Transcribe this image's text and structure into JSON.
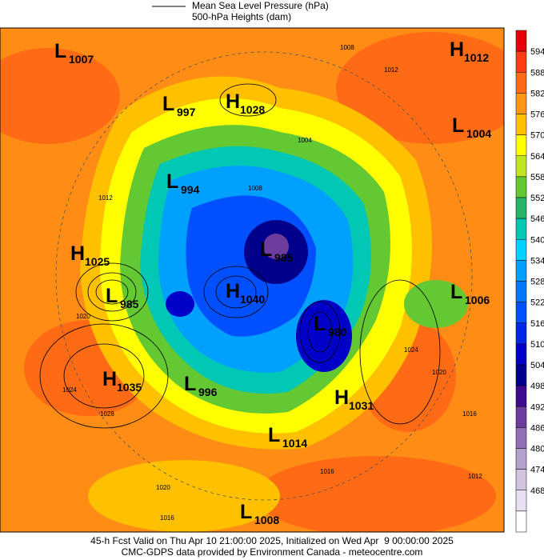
{
  "legend": {
    "pressure_label": "Mean Sea Level Pressure (hPa)",
    "heights_label": "500-hPa Heights (dam)"
  },
  "colorbar": {
    "top_color": "#e8000b",
    "levels": [
      {
        "label": 594,
        "color": "#ff3c14"
      },
      {
        "label": 588,
        "color": "#ff6a14"
      },
      {
        "label": 582,
        "color": "#ff9614"
      },
      {
        "label": 576,
        "color": "#ffc000"
      },
      {
        "label": 570,
        "color": "#ffff00"
      },
      {
        "label": 564,
        "color": "#c0e620"
      },
      {
        "label": 558,
        "color": "#64c832"
      },
      {
        "label": 552,
        "color": "#28b464"
      },
      {
        "label": 546,
        "color": "#00c8b4"
      },
      {
        "label": 540,
        "color": "#00d2ff"
      },
      {
        "label": 534,
        "color": "#00a0ff"
      },
      {
        "label": 528,
        "color": "#0078ff"
      },
      {
        "label": 522,
        "color": "#0050ff"
      },
      {
        "label": 516,
        "color": "#0028e6"
      },
      {
        "label": 510,
        "color": "#0000c8"
      },
      {
        "label": 504,
        "color": "#00008c"
      },
      {
        "label": 498,
        "color": "#3c0a8c"
      },
      {
        "label": 492,
        "color": "#6e3c9c"
      },
      {
        "label": 486,
        "color": "#9070b4"
      },
      {
        "label": 480,
        "color": "#b4a0cc"
      },
      {
        "label": 474,
        "color": "#d2c4e0"
      },
      {
        "label": 468,
        "color": "#e8e0f2"
      }
    ],
    "bottom_color": "#ffffff"
  },
  "centers": [
    {
      "kind": "L",
      "value": 1007
    },
    {
      "kind": "L",
      "value": 997
    },
    {
      "kind": "H",
      "value": 1028
    },
    {
      "kind": "H",
      "value": 1012
    },
    {
      "kind": "L",
      "value": 1004
    },
    {
      "kind": "L",
      "value": 994
    },
    {
      "kind": "H",
      "value": 1025
    },
    {
      "kind": "L",
      "value": 985
    },
    {
      "kind": "L",
      "value": 985
    },
    {
      "kind": "H",
      "value": 1040
    },
    {
      "kind": "L",
      "value": 1006
    },
    {
      "kind": "L",
      "value": 980
    },
    {
      "kind": "H",
      "value": 1035
    },
    {
      "kind": "L",
      "value": 996
    },
    {
      "kind": "H",
      "value": 1031
    },
    {
      "kind": "L",
      "value": 1014
    },
    {
      "kind": "L",
      "value": 1008
    }
  ],
  "isobar_labels": [
    "1008",
    "1012",
    "1004",
    "1008",
    "1012",
    "1020",
    "1028",
    "1024",
    "1024",
    "1020",
    "1016",
    "1012",
    "1020",
    "1016",
    "1016"
  ],
  "footer": {
    "line1": "45-h Fcst Valid on Thu Apr 10 21:00:00 2025, Initialized on Wed Apr  9 00:00:00 2025",
    "line2": "CMC-GDPS data provided by Environment Canada - meteocentre.com"
  }
}
